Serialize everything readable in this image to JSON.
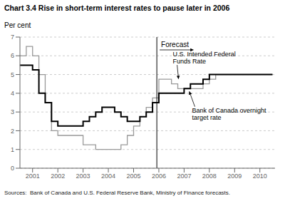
{
  "chart_data": {
    "type": "step",
    "title": "Chart 3.4 Rise in short-term interest rates to pause later in 2006",
    "y_label": "Per cent",
    "source": "Sources:  Bank of Canada and U.S. Federal Reserve Bank, Ministry of Finance forecasts.",
    "xlim": [
      2000.5,
      2010.6
    ],
    "xticks": [
      2001,
      2002,
      2003,
      2004,
      2005,
      2006,
      2007,
      2008,
      2009,
      2010
    ],
    "ylim": [
      0,
      7
    ],
    "yticks": [
      0,
      1,
      2,
      3,
      4,
      5,
      6,
      7
    ],
    "grid": true,
    "series": [
      {
        "color": "#999999",
        "x": [
          2000.5,
          2000.75,
          2001.0,
          2001.25,
          2001.5,
          2001.75,
          2002.0,
          2002.5,
          2003.0,
          2003.5,
          2004.0,
          2004.25,
          2004.5,
          2004.75,
          2005.0,
          2005.25,
          2005.5,
          2005.75,
          2006.0,
          2006.25,
          2006.5,
          2006.75,
          2007.0,
          2007.25,
          2007.5,
          2007.75,
          2008.0,
          2008.25,
          2010.5
        ],
        "values": [
          6.0,
          6.5,
          6.0,
          5.0,
          3.5,
          2.0,
          1.75,
          1.75,
          1.25,
          1.0,
          1.0,
          1.0,
          1.25,
          1.75,
          2.25,
          2.75,
          3.25,
          3.75,
          4.75,
          4.75,
          4.5,
          4.25,
          4.25,
          4.25,
          4.25,
          4.5,
          4.75,
          5.0,
          5.0
        ]
      },
      {
        "color": "#000000",
        "x": [
          2000.5,
          2001.0,
          2001.25,
          2001.5,
          2001.75,
          2002.0,
          2002.5,
          2003.0,
          2003.25,
          2003.5,
          2003.75,
          2004.0,
          2004.25,
          2004.5,
          2004.75,
          2005.0,
          2005.25,
          2005.5,
          2005.75,
          2006.0,
          2006.25,
          2006.75,
          2007.0,
          2007.25,
          2007.5,
          2007.75,
          2008.0,
          2010.5
        ],
        "values": [
          5.5,
          5.25,
          4.0,
          3.5,
          2.5,
          2.25,
          2.25,
          2.5,
          2.75,
          3.0,
          3.25,
          3.25,
          3.0,
          2.75,
          2.5,
          2.5,
          2.75,
          3.0,
          3.5,
          4.0,
          4.0,
          4.0,
          4.25,
          4.5,
          4.5,
          4.75,
          5.0,
          5.0
        ]
      }
    ],
    "annotations": [
      {
        "text": "Forecast",
        "x": 2005.92
      },
      {
        "text": "U.S. Intended Federal\nFunds Rate",
        "x": 2006.78,
        "y": 4.75
      },
      {
        "text": "Bank of Canada overnight\ntarget rate",
        "x": 2007.2,
        "y": 4.12
      }
    ]
  }
}
